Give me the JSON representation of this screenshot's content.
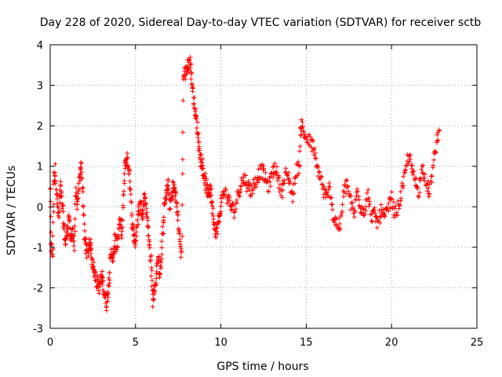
{
  "chart_data": {
    "type": "scatter",
    "title": "Day 228 of 2020, Sidereal Day-to-day VTEC variation (SDTVAR) for receiver sctb",
    "xlabel": "GPS time / hours",
    "ylabel": "SDTVAR / TECUs",
    "xlim": [
      0,
      25
    ],
    "ylim": [
      -3,
      4
    ],
    "xticks": [
      "0",
      "5",
      "10",
      "15",
      "20",
      "25"
    ],
    "yticks": [
      "-3",
      "-2",
      "-1",
      "0",
      "1",
      "2",
      "3",
      "4"
    ],
    "grid": true,
    "marker": "plus",
    "color": "#ff0000",
    "series_trace": [
      [
        0.0,
        0.5
      ],
      [
        0.05,
        -1.0
      ],
      [
        0.15,
        -1.2
      ],
      [
        0.2,
        0.7
      ],
      [
        0.3,
        0.9
      ],
      [
        0.4,
        0.2
      ],
      [
        0.5,
        -0.3
      ],
      [
        0.6,
        0.5
      ],
      [
        0.7,
        0.1
      ],
      [
        0.8,
        -0.5
      ],
      [
        0.9,
        -0.9
      ],
      [
        1.0,
        -0.6
      ],
      [
        1.1,
        -0.2
      ],
      [
        1.2,
        -0.9
      ],
      [
        1.3,
        -0.5
      ],
      [
        1.4,
        -1.0
      ],
      [
        1.5,
        0.3
      ],
      [
        1.6,
        0.0
      ],
      [
        1.7,
        0.6
      ],
      [
        1.8,
        1.1
      ],
      [
        1.9,
        0.5
      ],
      [
        2.0,
        -0.7
      ],
      [
        2.1,
        -1.0
      ],
      [
        2.2,
        -1.2
      ],
      [
        2.3,
        -0.8
      ],
      [
        2.4,
        -1.1
      ],
      [
        2.5,
        -1.4
      ],
      [
        2.6,
        -1.6
      ],
      [
        2.7,
        -1.8
      ],
      [
        2.8,
        -1.9
      ],
      [
        2.9,
        -2.0
      ],
      [
        3.0,
        -1.7
      ],
      [
        3.1,
        -1.9
      ],
      [
        3.2,
        -2.2
      ],
      [
        3.3,
        -2.4
      ],
      [
        3.4,
        -2.0
      ],
      [
        3.5,
        -1.5
      ],
      [
        3.6,
        -1.1
      ],
      [
        3.7,
        -1.3
      ],
      [
        3.8,
        -0.8
      ],
      [
        3.9,
        -1.0
      ],
      [
        4.0,
        -0.6
      ],
      [
        4.1,
        -0.4
      ],
      [
        4.2,
        -0.7
      ],
      [
        4.3,
        0.3
      ],
      [
        4.4,
        1.1
      ],
      [
        4.5,
        1.2
      ],
      [
        4.6,
        0.9
      ],
      [
        4.7,
        0.5
      ],
      [
        4.8,
        -0.5
      ],
      [
        4.9,
        -0.7
      ],
      [
        5.0,
        -0.9
      ],
      [
        5.1,
        -0.4
      ],
      [
        5.2,
        -0.1
      ],
      [
        5.3,
        0.1
      ],
      [
        5.4,
        -0.3
      ],
      [
        5.5,
        0.3
      ],
      [
        5.6,
        0.1
      ],
      [
        5.7,
        -0.3
      ],
      [
        5.8,
        -0.9
      ],
      [
        5.9,
        -1.3
      ],
      [
        6.0,
        -2.3
      ],
      [
        6.1,
        -2.1
      ],
      [
        6.2,
        -1.8
      ],
      [
        6.3,
        -1.3
      ],
      [
        6.4,
        -1.6
      ],
      [
        6.5,
        -1.4
      ],
      [
        6.6,
        -0.6
      ],
      [
        6.7,
        0.0
      ],
      [
        6.8,
        0.3
      ],
      [
        6.9,
        0.6
      ],
      [
        7.0,
        0.0
      ],
      [
        7.1,
        0.2
      ],
      [
        7.2,
        0.5
      ],
      [
        7.3,
        0.4
      ],
      [
        7.4,
        0.1
      ],
      [
        7.5,
        -0.3
      ],
      [
        7.6,
        -0.9
      ],
      [
        7.7,
        -1.2
      ],
      [
        7.8,
        3.2
      ],
      [
        7.9,
        3.3
      ],
      [
        8.0,
        3.4
      ],
      [
        8.1,
        3.5
      ],
      [
        8.2,
        3.6
      ],
      [
        8.3,
        3.1
      ],
      [
        8.4,
        2.7
      ],
      [
        8.5,
        2.3
      ],
      [
        8.6,
        2.0
      ],
      [
        8.7,
        1.6
      ],
      [
        8.8,
        1.2
      ],
      [
        8.9,
        1.1
      ],
      [
        9.0,
        0.8
      ],
      [
        9.1,
        0.6
      ],
      [
        9.2,
        0.4
      ],
      [
        9.3,
        0.3
      ],
      [
        9.4,
        0.5
      ],
      [
        9.5,
        0.0
      ],
      [
        9.6,
        -0.4
      ],
      [
        9.7,
        -0.6
      ],
      [
        9.8,
        -0.5
      ],
      [
        9.9,
        -0.3
      ],
      [
        10.0,
        0.1
      ],
      [
        10.2,
        0.4
      ],
      [
        10.4,
        0.2
      ],
      [
        10.6,
        0.0
      ],
      [
        10.8,
        -0.1
      ],
      [
        11.0,
        0.3
      ],
      [
        11.2,
        0.6
      ],
      [
        11.4,
        0.7
      ],
      [
        11.6,
        0.5
      ],
      [
        11.8,
        0.4
      ],
      [
        12.0,
        0.6
      ],
      [
        12.2,
        0.8
      ],
      [
        12.4,
        0.9
      ],
      [
        12.6,
        0.7
      ],
      [
        12.8,
        0.5
      ],
      [
        13.0,
        0.8
      ],
      [
        13.2,
        1.0
      ],
      [
        13.4,
        0.6
      ],
      [
        13.6,
        0.4
      ],
      [
        13.8,
        0.8
      ],
      [
        14.0,
        0.7
      ],
      [
        14.2,
        0.2
      ],
      [
        14.4,
        0.9
      ],
      [
        14.6,
        1.0
      ],
      [
        14.7,
        2.1
      ],
      [
        14.8,
        1.9
      ],
      [
        15.0,
        1.7
      ],
      [
        15.2,
        1.6
      ],
      [
        15.4,
        1.5
      ],
      [
        15.6,
        1.0
      ],
      [
        15.8,
        0.8
      ],
      [
        16.0,
        0.4
      ],
      [
        16.2,
        0.2
      ],
      [
        16.4,
        0.5
      ],
      [
        16.6,
        -0.3
      ],
      [
        16.8,
        -0.4
      ],
      [
        17.0,
        -0.5
      ],
      [
        17.2,
        0.3
      ],
      [
        17.4,
        0.6
      ],
      [
        17.6,
        0.1
      ],
      [
        17.8,
        -0.2
      ],
      [
        18.0,
        0.4
      ],
      [
        18.2,
        0.0
      ],
      [
        18.4,
        -0.1
      ],
      [
        18.6,
        0.3
      ],
      [
        18.8,
        -0.2
      ],
      [
        19.0,
        -0.2
      ],
      [
        19.2,
        -0.4
      ],
      [
        19.4,
        -0.1
      ],
      [
        19.6,
        -0.3
      ],
      [
        19.8,
        0.0
      ],
      [
        20.0,
        0.2
      ],
      [
        20.2,
        -0.2
      ],
      [
        20.4,
        0.0
      ],
      [
        20.6,
        0.4
      ],
      [
        20.8,
        0.8
      ],
      [
        21.0,
        1.3
      ],
      [
        21.2,
        0.9
      ],
      [
        21.4,
        0.6
      ],
      [
        21.6,
        0.4
      ],
      [
        21.8,
        1.0
      ],
      [
        22.0,
        0.7
      ],
      [
        22.2,
        0.3
      ],
      [
        22.4,
        0.9
      ],
      [
        22.6,
        1.5
      ],
      [
        22.8,
        1.9
      ]
    ]
  }
}
